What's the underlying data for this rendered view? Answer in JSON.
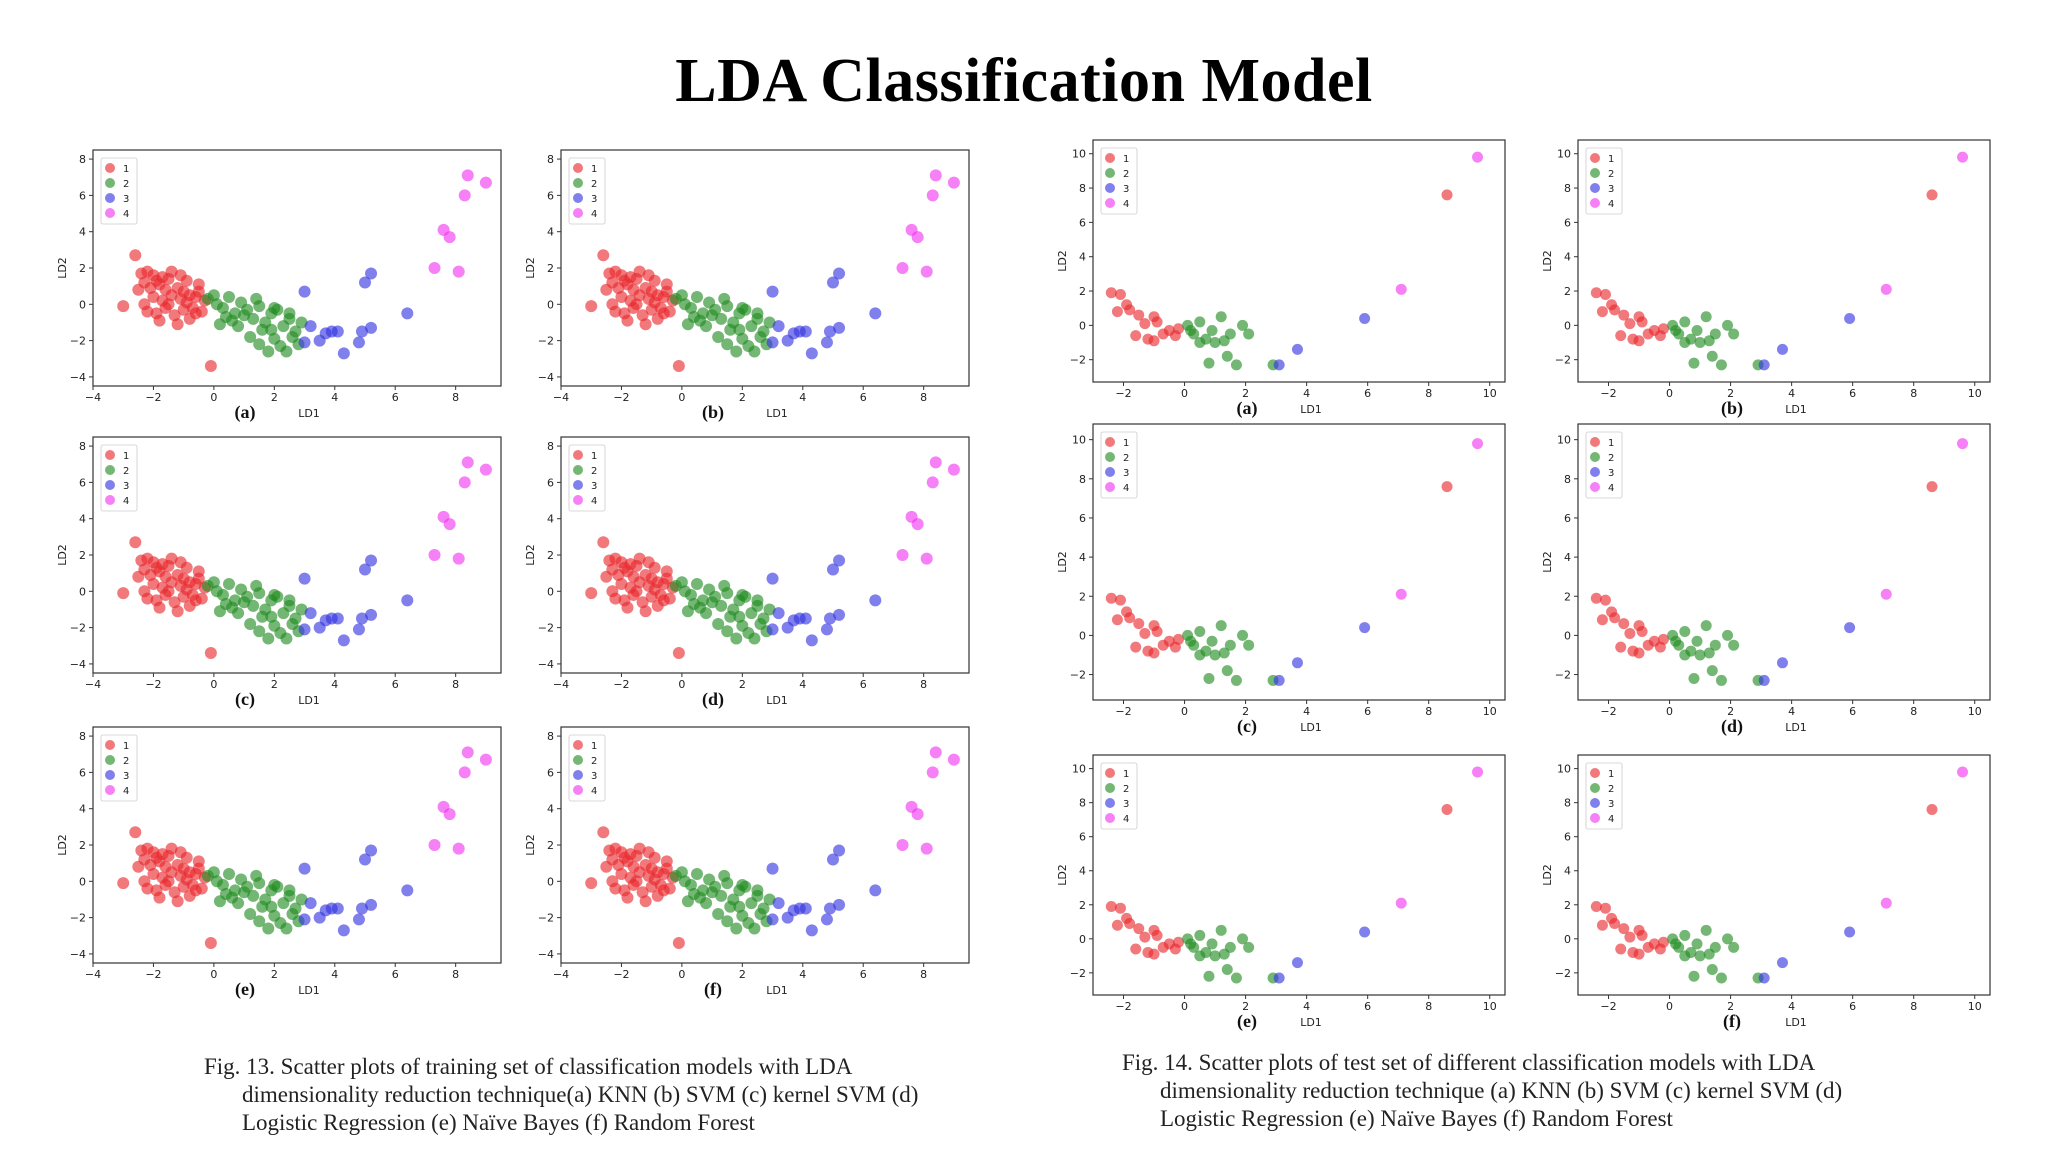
{
  "title": "LDA Classification Model",
  "captions": {
    "train": [
      "Fig. 13. Scatter plots of training set of classification models with LDA",
      "dimensionality reduction technique(a) KNN (b) SVM (c) kernel SVM (d)",
      "Logistic Regression (e) Naïve Bayes (f) Random Forest"
    ],
    "test": [
      "Fig. 14. Scatter plots of test set of different classification models with LDA",
      "dimensionality reduction technique (a) KNN (b) SVM (c) kernel SVM (d)",
      "Logistic Regression (e) Naïve Bayes (f) Random Forest"
    ]
  },
  "colors": {
    "1": "#e8262b",
    "2": "#1f8a1f",
    "3": "#3232e0",
    "4": "#f032f0"
  },
  "chart_data": [
    {
      "group": "train",
      "type": "scatter",
      "panel_labels": [
        "(a)",
        "(b)",
        "(c)",
        "(d)",
        "(e)",
        "(f)"
      ],
      "xlabel": "LD1",
      "ylabel": "LD2",
      "xlim": [
        -4,
        9.5
      ],
      "ylim": [
        -4.5,
        8.5
      ],
      "xticks": [
        -4,
        -2,
        0,
        2,
        4,
        6,
        8
      ],
      "yticks": [
        -4,
        -2,
        0,
        2,
        4,
        6,
        8
      ],
      "legend": [
        "1",
        "2",
        "3",
        "4"
      ],
      "legend_position": "top-left",
      "series": [
        {
          "name": "1",
          "points": [
            [
              -3,
              -0.1
            ],
            [
              -2.6,
              2.7
            ],
            [
              -0.1,
              -3.4
            ],
            [
              -2.4,
              1.7
            ],
            [
              -2.2,
              1.8
            ],
            [
              -2.0,
              1.6
            ],
            [
              -1.9,
              1.3
            ],
            [
              -2.3,
              1.2
            ],
            [
              -2.1,
              0.9
            ],
            [
              -1.8,
              1.1
            ],
            [
              -1.6,
              0.8
            ],
            [
              -1.5,
              1.4
            ],
            [
              -1.4,
              0.5
            ],
            [
              -1.2,
              0.9
            ],
            [
              -1.1,
              0.3
            ],
            [
              -1.0,
              0.7
            ],
            [
              -0.9,
              0.1
            ],
            [
              -0.8,
              0.5
            ],
            [
              -0.7,
              -0.2
            ],
            [
              -0.6,
              0.4
            ],
            [
              -0.5,
              1.1
            ],
            [
              -0.4,
              -0.4
            ],
            [
              -0.3,
              0.2
            ],
            [
              -1.7,
              0.2
            ],
            [
              -2.0,
              0.4
            ],
            [
              -1.9,
              -0.5
            ],
            [
              -1.6,
              -0.2
            ],
            [
              -1.3,
              -0.6
            ],
            [
              -1.0,
              -0.3
            ],
            [
              -0.8,
              -0.8
            ],
            [
              -1.8,
              -0.9
            ],
            [
              -1.2,
              -1.1
            ],
            [
              -2.3,
              0.0
            ],
            [
              -1.4,
              1.8
            ],
            [
              -0.9,
              1.3
            ],
            [
              -0.6,
              -0.5
            ],
            [
              -2.5,
              0.8
            ],
            [
              -1.7,
              1.5
            ],
            [
              -1.1,
              1.6
            ],
            [
              -0.5,
              0.7
            ],
            [
              -1.5,
              0.0
            ],
            [
              -2.2,
              -0.4
            ]
          ]
        },
        {
          "name": "2",
          "points": [
            [
              -0.2,
              0.3
            ],
            [
              0.1,
              0.0
            ],
            [
              0.3,
              -0.2
            ],
            [
              0.5,
              0.4
            ],
            [
              0.7,
              -0.5
            ],
            [
              0.9,
              0.1
            ],
            [
              1.1,
              -0.3
            ],
            [
              1.3,
              -0.8
            ],
            [
              1.5,
              -0.1
            ],
            [
              1.7,
              -1.0
            ],
            [
              1.9,
              -0.5
            ],
            [
              2.1,
              -0.3
            ],
            [
              2.3,
              -1.2
            ],
            [
              2.5,
              -0.8
            ],
            [
              2.7,
              -1.5
            ],
            [
              2.0,
              -1.9
            ],
            [
              1.6,
              -1.4
            ],
            [
              2.4,
              -2.6
            ],
            [
              2.8,
              -2.2
            ],
            [
              1.2,
              -1.8
            ],
            [
              0.8,
              -1.2
            ],
            [
              0.4,
              -0.7
            ],
            [
              2.0,
              -0.2
            ],
            [
              1.4,
              0.3
            ],
            [
              0.2,
              -1.1
            ],
            [
              2.6,
              -1.8
            ],
            [
              1.8,
              -2.6
            ],
            [
              2.2,
              -2.3
            ],
            [
              1.0,
              -0.6
            ],
            [
              0.6,
              -0.9
            ],
            [
              2.9,
              -1.0
            ],
            [
              1.9,
              -1.4
            ],
            [
              0.0,
              0.5
            ],
            [
              1.5,
              -2.2
            ],
            [
              2.5,
              -0.5
            ]
          ]
        },
        {
          "name": "3",
          "points": [
            [
              3.0,
              0.7
            ],
            [
              3.2,
              -1.2
            ],
            [
              3.5,
              -2.0
            ],
            [
              3.9,
              -1.5
            ],
            [
              4.1,
              -1.5
            ],
            [
              4.3,
              -2.7
            ],
            [
              4.8,
              -2.1
            ],
            [
              4.9,
              -1.5
            ],
            [
              5.0,
              1.2
            ],
            [
              5.2,
              1.7
            ],
            [
              5.2,
              -1.3
            ],
            [
              6.4,
              -0.5
            ],
            [
              3.0,
              -2.1
            ],
            [
              3.7,
              -1.6
            ]
          ]
        },
        {
          "name": "4",
          "points": [
            [
              7.3,
              2.0
            ],
            [
              7.6,
              4.1
            ],
            [
              7.8,
              3.7
            ],
            [
              8.1,
              1.8
            ],
            [
              8.3,
              6.0
            ],
            [
              8.4,
              7.1
            ],
            [
              9.0,
              6.7
            ]
          ]
        }
      ]
    },
    {
      "group": "test",
      "type": "scatter",
      "panel_labels": [
        "(a)",
        "(b)",
        "(c)",
        "(d)",
        "(e)",
        "(f)"
      ],
      "xlabel": "LD1",
      "ylabel": "LD2",
      "xlim": [
        -3,
        10.5
      ],
      "ylim": [
        -3.3,
        10.8
      ],
      "xticks": [
        -2,
        0,
        2,
        4,
        6,
        8,
        10
      ],
      "yticks": [
        -2,
        0,
        2,
        4,
        6,
        8,
        10
      ],
      "legend": [
        "1",
        "2",
        "3",
        "4"
      ],
      "legend_position": "top-left",
      "series": [
        {
          "name": "1",
          "points": [
            [
              -2.4,
              1.9
            ],
            [
              -2.1,
              1.8
            ],
            [
              -1.9,
              1.2
            ],
            [
              -1.8,
              0.9
            ],
            [
              -2.2,
              0.8
            ],
            [
              -1.5,
              0.6
            ],
            [
              -1.0,
              0.5
            ],
            [
              -0.9,
              0.2
            ],
            [
              -1.6,
              -0.6
            ],
            [
              -1.2,
              -0.8
            ],
            [
              -0.7,
              -0.5
            ],
            [
              -0.5,
              -0.3
            ],
            [
              -0.3,
              -0.6
            ],
            [
              -1.3,
              0.1
            ],
            [
              -1.0,
              -0.9
            ],
            [
              -0.2,
              -0.2
            ],
            [
              8.6,
              7.6
            ]
          ]
        },
        {
          "name": "2",
          "points": [
            [
              0.1,
              0.0
            ],
            [
              0.3,
              -0.5
            ],
            [
              0.5,
              0.2
            ],
            [
              0.7,
              -0.8
            ],
            [
              0.9,
              -0.3
            ],
            [
              1.2,
              0.5
            ],
            [
              1.3,
              -0.9
            ],
            [
              1.5,
              -0.5
            ],
            [
              1.0,
              -1.0
            ],
            [
              1.9,
              0.0
            ],
            [
              2.1,
              -0.5
            ],
            [
              0.8,
              -2.2
            ],
            [
              1.4,
              -1.8
            ],
            [
              1.7,
              -2.3
            ],
            [
              2.9,
              -2.3
            ],
            [
              0.5,
              -1.0
            ],
            [
              0.2,
              -0.3
            ]
          ]
        },
        {
          "name": "3",
          "points": [
            [
              3.1,
              -2.3
            ],
            [
              3.7,
              -1.4
            ],
            [
              5.9,
              0.4
            ]
          ]
        },
        {
          "name": "4",
          "points": [
            [
              7.1,
              2.1
            ],
            [
              9.6,
              9.8
            ]
          ]
        }
      ]
    }
  ]
}
